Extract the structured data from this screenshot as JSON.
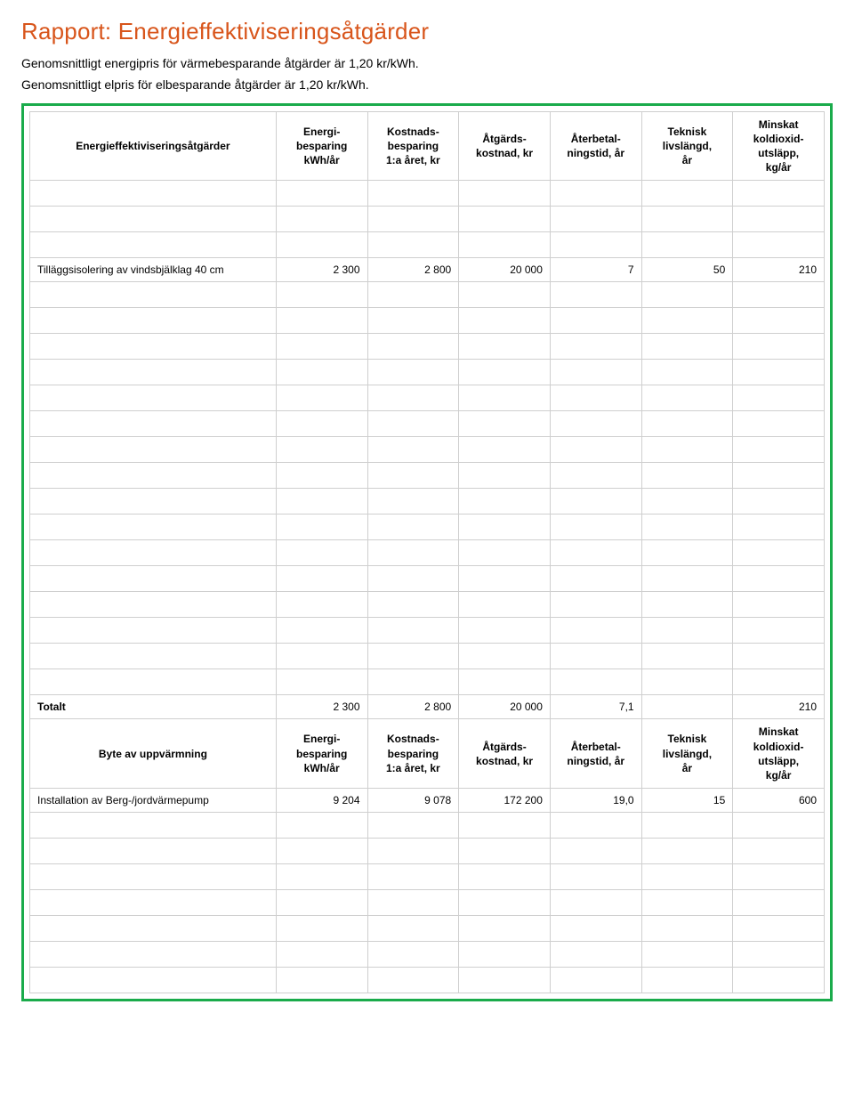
{
  "title": "Rapport: Energieffektiviseringsåtgärder",
  "intro1": "Genomsnittligt energipris för värmebesparande åtgärder är 1,20 kr/kWh.",
  "intro2": "Genomsnittligt elpris för elbesparande åtgärder är 1,20 kr/kWh.",
  "cols": {
    "measure": "Energieffektiviseringsåtgärder",
    "energy": "Energi-\nbesparing\nkWh/år",
    "cost1": "Kostnads-\nbesparing\n1:a året, kr",
    "cost2": "Åtgärds-\nkostnad, kr",
    "payback": "Återbetal-\nningstid, år",
    "life": "Teknisk\nlivslängd,\når",
    "co2": "Minskat\nkoldioxid-\nutsläpp,\nkg/år"
  },
  "row1": {
    "label": "Tilläggsisolering av vindsbjälklag 40 cm",
    "v1": "2 300",
    "v2": "2 800",
    "v3": "20 000",
    "v4": "7",
    "v5": "50",
    "v6": "210"
  },
  "total": {
    "label": "Totalt",
    "v1": "2 300",
    "v2": "2 800",
    "v3": "20 000",
    "v4": "7,1",
    "v5": "",
    "v6": "210"
  },
  "cols2": {
    "measure": "Byte av uppvärmning",
    "energy": "Energi-\nbesparing\nkWh/år",
    "cost1": "Kostnads-\nbesparing\n1:a året, kr",
    "cost2": "Åtgärds-\nkostnad, kr",
    "payback": "Återbetal-\nningstid, år",
    "life": "Teknisk\nlivslängd,\når",
    "co2": "Minskat\nkoldioxid-\nutsläpp,\nkg/år"
  },
  "row2": {
    "label": "Installation av Berg-/jordvärmepump",
    "v1": "9 204",
    "v2": "9 078",
    "v3": "172 200",
    "v4": "19,0",
    "v5": "15",
    "v6": "600"
  }
}
